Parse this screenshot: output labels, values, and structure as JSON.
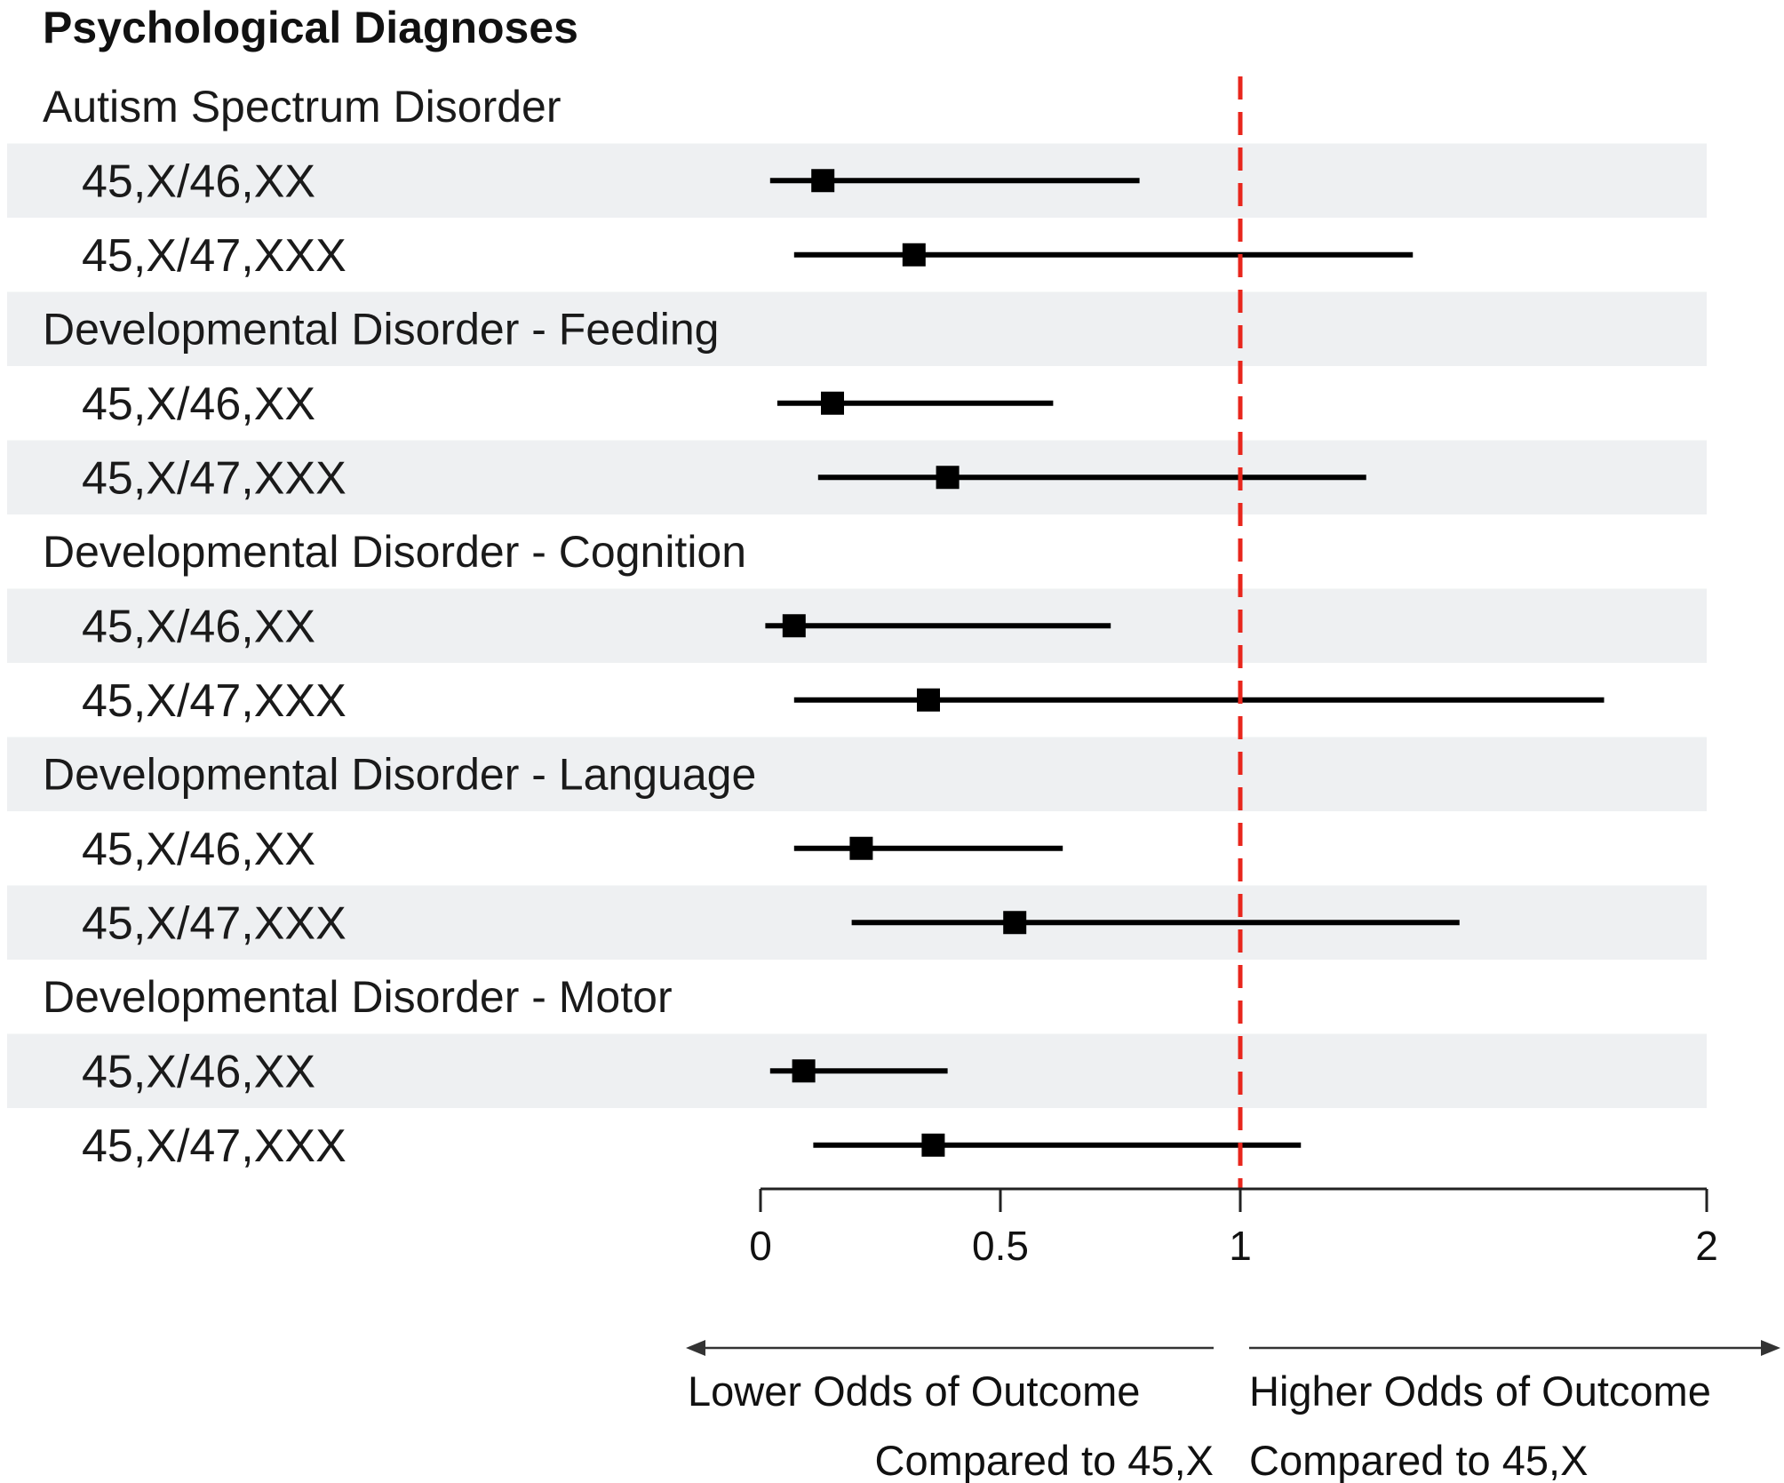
{
  "chart_data": {
    "type": "forest",
    "title": "Psychological Diagnoses",
    "reference_line": 1,
    "xlim": [
      0,
      2
    ],
    "x_ticks": [
      "0",
      "0.5",
      "1",
      "2"
    ],
    "groups": [
      {
        "label": "Autism Spectrum Disorder",
        "rows": [
          {
            "label": "45,X/46,XX",
            "estimate": 0.13,
            "lower": 0.02,
            "upper": 0.79
          },
          {
            "label": "45,X/47,XXX",
            "estimate": 0.32,
            "lower": 0.07,
            "upper": 1.37
          }
        ]
      },
      {
        "label": "Developmental Disorder - Feeding",
        "rows": [
          {
            "label": "45,X/46,XX",
            "estimate": 0.15,
            "lower": 0.035,
            "upper": 0.61
          },
          {
            "label": "45,X/47,XXX",
            "estimate": 0.39,
            "lower": 0.12,
            "upper": 1.27
          }
        ]
      },
      {
        "label": "Developmental Disorder - Cognition",
        "rows": [
          {
            "label": "45,X/46,XX",
            "estimate": 0.07,
            "lower": 0.01,
            "upper": 0.73
          },
          {
            "label": "45,X/47,XXX",
            "estimate": 0.35,
            "lower": 0.07,
            "upper": 1.78
          }
        ]
      },
      {
        "label": "Developmental Disorder - Language",
        "rows": [
          {
            "label": "45,X/46,XX",
            "estimate": 0.21,
            "lower": 0.07,
            "upper": 0.63
          },
          {
            "label": "45,X/47,XXX",
            "estimate": 0.53,
            "lower": 0.19,
            "upper": 1.47
          }
        ]
      },
      {
        "label": "Developmental Disorder - Motor",
        "rows": [
          {
            "label": "45,X/46,XX",
            "estimate": 0.09,
            "lower": 0.02,
            "upper": 0.39
          },
          {
            "label": "45,X/47,XXX",
            "estimate": 0.36,
            "lower": 0.11,
            "upper": 1.13
          }
        ]
      }
    ],
    "annotations": {
      "lower_line1": "Lower Odds of Outcome",
      "lower_line2": "Compared to 45,X",
      "higher_line1": "Higher Odds of Outcome",
      "higher_line2": "Compared to 45,X"
    },
    "colors": {
      "reference_line": "#e8261c",
      "marker": "#000000",
      "stripe": "#eef0f2"
    }
  }
}
